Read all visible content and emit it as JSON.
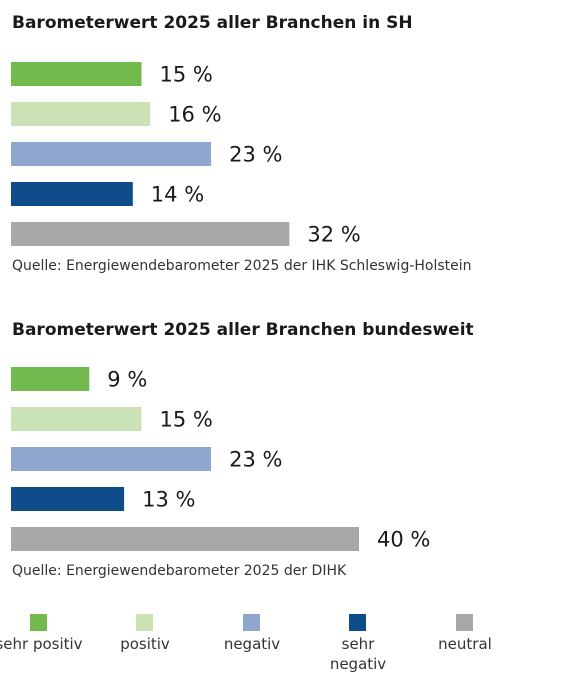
{
  "colors": {
    "sehr_positiv": "#72b94e",
    "positiv": "#cbe3b4",
    "negativ": "#8fa7cf",
    "sehr_negativ": "#0f4c8a",
    "neutral": "#a8a8a8"
  },
  "chart_data": [
    {
      "type": "bar",
      "orientation": "horizontal",
      "title": "Barometerwert 2025 aller Branchen in SH",
      "categories": [
        "sehr positiv",
        "positiv",
        "negativ",
        "sehr negativ",
        "neutral"
      ],
      "values": [
        15,
        16,
        23,
        14,
        32
      ],
      "labels": [
        "15 %",
        "16 %",
        "23 %",
        "14 %",
        "32 %"
      ],
      "xlim": [
        0,
        42
      ],
      "grid": false,
      "source": "Quelle: Energiewendebarometer 2025 der IHK Schleswig-Holstein"
    },
    {
      "type": "bar",
      "orientation": "horizontal",
      "title": "Barometerwert 2025 aller Branchen bundesweit",
      "categories": [
        "sehr positiv",
        "positiv",
        "negativ",
        "sehr negativ",
        "neutral"
      ],
      "values": [
        9,
        15,
        23,
        13,
        40
      ],
      "labels": [
        "9 %",
        "15 %",
        "23 %",
        "13 %",
        "40 %"
      ],
      "xlim": [
        0,
        42
      ],
      "grid": false,
      "source": "Quelle: Energiewendebarometer 2025 der DIHK"
    }
  ],
  "legend": {
    "placement": "bottom",
    "items": [
      {
        "label": "sehr positiv",
        "color_key": "sehr_positiv"
      },
      {
        "label": "positiv",
        "color_key": "positiv"
      },
      {
        "label": "negativ",
        "color_key": "negativ"
      },
      {
        "label": "sehr negativ",
        "color_key": "sehr_negativ"
      },
      {
        "label": "neutral",
        "color_key": "neutral"
      }
    ]
  }
}
